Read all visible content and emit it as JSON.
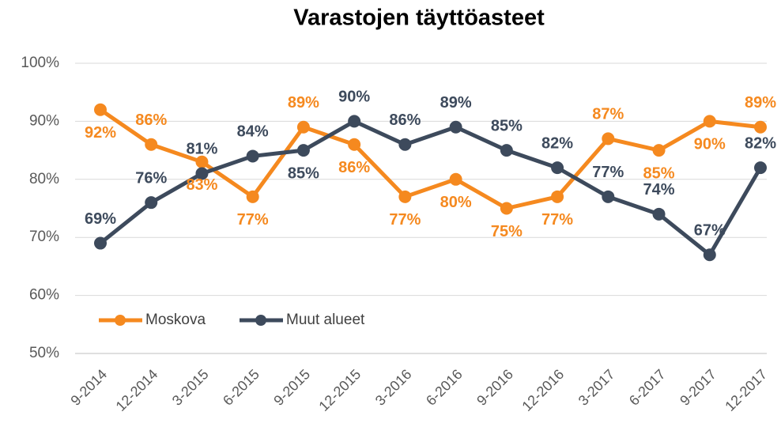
{
  "chart_data": {
    "type": "line",
    "title": "Varastojen täyttöasteet",
    "categories": [
      "9-2014",
      "12-2014",
      "3-2015",
      "6-2015",
      "9-2015",
      "12-2015",
      "3-2016",
      "6-2016",
      "9-2016",
      "12-2016",
      "3-2017",
      "6-2017",
      "9-2017",
      "12-2017"
    ],
    "series": [
      {
        "name": "Moskova",
        "color": "#f5891f",
        "values": [
          92,
          86,
          83,
          77,
          89,
          86,
          77,
          80,
          75,
          77,
          87,
          85,
          90,
          89
        ],
        "value_labels": [
          "92%",
          "86%",
          "83%",
          "77%",
          "89%",
          "86%",
          "77%",
          "80%",
          "75%",
          "77%",
          "87%",
          "85%",
          "90%",
          "89%"
        ]
      },
      {
        "name": "Muut alueet",
        "color": "#3d4a5c",
        "values": [
          69,
          76,
          81,
          84,
          85,
          90,
          86,
          89,
          85,
          82,
          77,
          74,
          67,
          82
        ],
        "value_labels": [
          "69%",
          "76%",
          "81%",
          "84%",
          "85%",
          "90%",
          "86%",
          "89%",
          "85%",
          "82%",
          "77%",
          "74%",
          "67%",
          "82%"
        ]
      }
    ],
    "ylim": [
      50,
      100
    ],
    "yticks": [
      {
        "value": 50,
        "label": "50%"
      },
      {
        "value": 60,
        "label": "60%"
      },
      {
        "value": 70,
        "label": "70%"
      },
      {
        "value": 80,
        "label": "80%"
      },
      {
        "value": 90,
        "label": "90%"
      },
      {
        "value": 100,
        "label": "100%"
      }
    ],
    "grid": true,
    "legend": "bottom-left"
  }
}
